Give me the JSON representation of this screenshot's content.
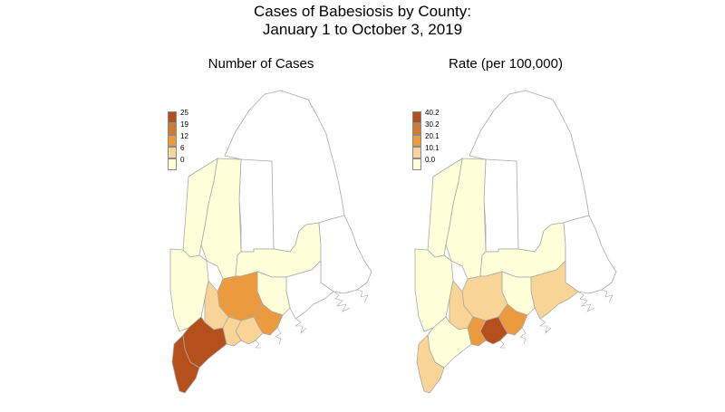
{
  "title_line1": "Cases of Babesiosis by County:",
  "title_line2": "January 1 to October 3, 2019",
  "maps": [
    {
      "title": "Number of Cases",
      "legend": [
        "25",
        "19",
        "12",
        "6",
        "0"
      ],
      "legend_colors": [
        "#b5501c",
        "#d17b2b",
        "#ec9a3e",
        "#f8d596",
        "#ffffd9"
      ],
      "fills": {
        "aroostook": "#ffffff",
        "piscataquis": "#ffffff",
        "somerset": "#ffffd9",
        "franklin": "#ffffd9",
        "oxford": "#ffffd9",
        "penobscot": "#ffffd9",
        "washington": "#ffffff",
        "hancock": "#ffffff",
        "waldo": "#ffffd9",
        "kennebec": "#ec9a3e",
        "androscoggin": "#f8d596",
        "knox": "#ec9a3e",
        "lincoln": "#f8d596",
        "sagadahoc": "#f8d596",
        "cumberland": "#b5501c",
        "york": "#b5501c"
      }
    },
    {
      "title": "Rate (per 100,000)",
      "legend": [
        "40.2",
        "30.2",
        "20.1",
        "10.1",
        "0.0"
      ],
      "legend_colors": [
        "#b5501c",
        "#d17b2b",
        "#ec9a3e",
        "#f8d596",
        "#ffffd9"
      ],
      "fills": {
        "aroostook": "#ffffff",
        "piscataquis": "#ffffff",
        "somerset": "#ffffd9",
        "franklin": "#ffffd9",
        "oxford": "#ffffd9",
        "penobscot": "#ffffd9",
        "washington": "#ffffff",
        "hancock": "#f8d596",
        "waldo": "#ffffd9",
        "kennebec": "#f8d596",
        "androscoggin": "#f8d596",
        "knox": "#ec9a3e",
        "lincoln": "#b5501c",
        "sagadahoc": "#ec9a3e",
        "cumberland": "#ffffd9",
        "york": "#f8d596"
      }
    }
  ]
}
